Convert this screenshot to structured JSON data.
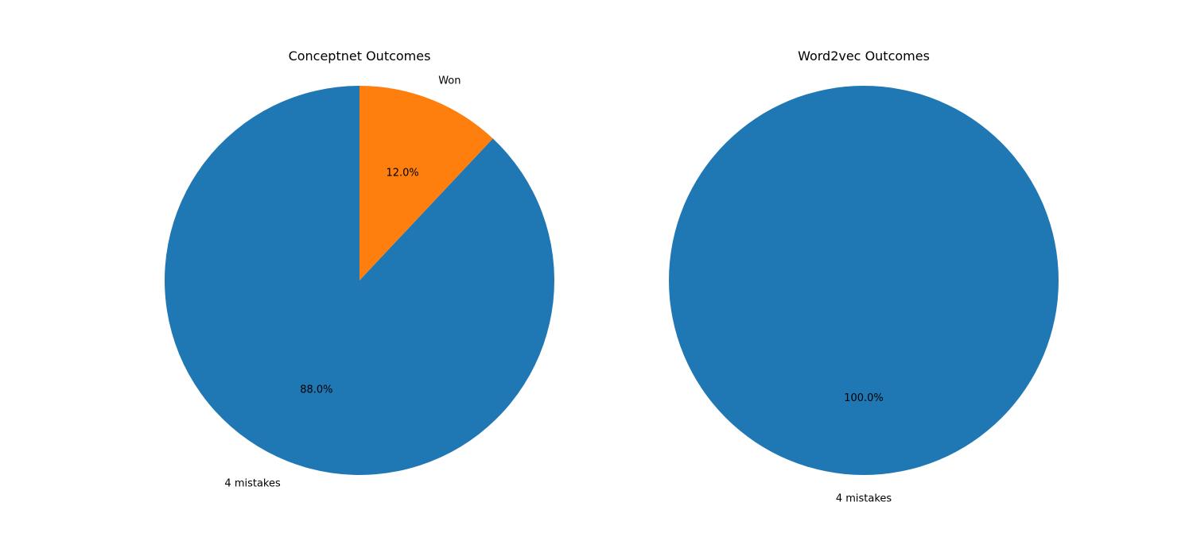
{
  "chart_data": [
    {
      "type": "pie",
      "title": "Conceptnet Outcomes",
      "categories": [
        "4 mistakes",
        "Won"
      ],
      "values": [
        88.0,
        12.0
      ],
      "percent_labels": [
        "88.0%",
        "12.0%"
      ],
      "colors": [
        "#1f77b4",
        "#ff7f0e"
      ],
      "start_angle_deg": 90,
      "direction": "counterclockwise"
    },
    {
      "type": "pie",
      "title": "Word2vec Outcomes",
      "categories": [
        "4 mistakes"
      ],
      "values": [
        100.0
      ],
      "percent_labels": [
        "100.0%"
      ],
      "colors": [
        "#1f77b4"
      ],
      "start_angle_deg": 90,
      "direction": "counterclockwise"
    }
  ]
}
